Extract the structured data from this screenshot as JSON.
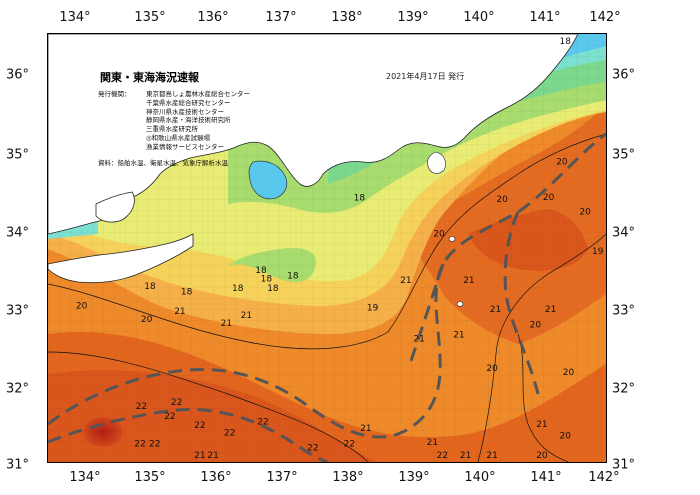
{
  "map": {
    "title": "関東・東海海況速報",
    "issued": "2021年4月17日 発行",
    "issuer_label": "発行機関：",
    "issuers": [
      "東京都島しょ農林水産総合センター",
      "千葉県水産総合研究センター",
      "神奈川県水産技術センター",
      "静岡県水産・海洋技術研究所",
      "三重県水産研究所",
      "◎和歌山県水産試験場",
      "漁業情報サービスセンター"
    ],
    "source": "資料：船舶水温、衛星水温、気象庁解析水温",
    "lon_labels": [
      "134°",
      "135°",
      "136°",
      "137°",
      "138°",
      "139°",
      "140°",
      "141°",
      "142°"
    ],
    "lat_labels_left": [
      "36°",
      "35°",
      "34°",
      "33°",
      "32°",
      "31°"
    ],
    "lat_labels_right": [
      "36°",
      "35°",
      "34°",
      "33°",
      "32°",
      "31°"
    ],
    "lon_range": [
      133.6,
      142.0
    ],
    "lat_range": [
      31.0,
      36.5
    ],
    "isotherm_labels": [
      {
        "t": "18",
        "lon": 141.3,
        "lat": 36.44
      },
      {
        "t": "18",
        "lon": 138.2,
        "lat": 34.36
      },
      {
        "t": "20",
        "lon": 140.35,
        "lat": 34.34
      },
      {
        "t": "20",
        "lon": 141.25,
        "lat": 34.82
      },
      {
        "t": "20",
        "lon": 141.05,
        "lat": 34.37
      },
      {
        "t": "20",
        "lon": 141.6,
        "lat": 34.18
      },
      {
        "t": "20",
        "lon": 139.4,
        "lat": 33.9
      },
      {
        "t": "19",
        "lon": 141.88,
        "lat": 33.67
      },
      {
        "t": "18",
        "lon": 136.72,
        "lat": 33.43
      },
      {
        "t": "18",
        "lon": 136.8,
        "lat": 33.32
      },
      {
        "t": "18",
        "lon": 136.37,
        "lat": 33.2
      },
      {
        "t": "18",
        "lon": 137.2,
        "lat": 33.36
      },
      {
        "t": "18",
        "lon": 136.9,
        "lat": 33.2
      },
      {
        "t": "18",
        "lon": 135.05,
        "lat": 33.22
      },
      {
        "t": "18",
        "lon": 135.6,
        "lat": 33.15
      },
      {
        "t": "21",
        "lon": 138.9,
        "lat": 33.3
      },
      {
        "t": "21",
        "lon": 139.85,
        "lat": 33.3
      },
      {
        "t": "20",
        "lon": 134.02,
        "lat": 32.97
      },
      {
        "t": "19",
        "lon": 138.4,
        "lat": 32.95
      },
      {
        "t": "21",
        "lon": 140.25,
        "lat": 32.93
      },
      {
        "t": "20",
        "lon": 140.85,
        "lat": 32.73
      },
      {
        "t": "21",
        "lon": 141.08,
        "lat": 32.93
      },
      {
        "t": "21",
        "lon": 135.5,
        "lat": 32.9
      },
      {
        "t": "21",
        "lon": 136.2,
        "lat": 32.75
      },
      {
        "t": "21",
        "lon": 136.5,
        "lat": 32.85
      },
      {
        "t": "20",
        "lon": 135.0,
        "lat": 32.8
      },
      {
        "t": "21",
        "lon": 139.1,
        "lat": 32.55
      },
      {
        "t": "21",
        "lon": 139.7,
        "lat": 32.6
      },
      {
        "t": "20",
        "lon": 140.2,
        "lat": 32.17
      },
      {
        "t": "20",
        "lon": 141.35,
        "lat": 32.12
      },
      {
        "t": "22",
        "lon": 134.92,
        "lat": 31.68
      },
      {
        "t": "22",
        "lon": 135.45,
        "lat": 31.73
      },
      {
        "t": "22",
        "lon": 135.35,
        "lat": 31.55
      },
      {
        "t": "22",
        "lon": 136.75,
        "lat": 31.48
      },
      {
        "t": "22",
        "lon": 135.8,
        "lat": 31.44
      },
      {
        "t": "22",
        "lon": 136.25,
        "lat": 31.34
      },
      {
        "t": "21",
        "lon": 138.3,
        "lat": 31.4
      },
      {
        "t": "21",
        "lon": 139.3,
        "lat": 31.22
      },
      {
        "t": "21",
        "lon": 140.95,
        "lat": 31.45
      },
      {
        "t": "20",
        "lon": 141.3,
        "lat": 31.3
      },
      {
        "t": "22",
        "lon": 134.9,
        "lat": 31.2
      },
      {
        "t": "22",
        "lon": 135.12,
        "lat": 31.2
      },
      {
        "t": "22",
        "lon": 137.5,
        "lat": 31.15
      },
      {
        "t": "22",
        "lon": 138.05,
        "lat": 31.2
      },
      {
        "t": "22",
        "lon": 139.45,
        "lat": 31.05
      },
      {
        "t": "21",
        "lon": 135.8,
        "lat": 31.05
      },
      {
        "t": "21",
        "lon": 136.0,
        "lat": 31.05
      },
      {
        "t": "21",
        "lon": 139.8,
        "lat": 31.05
      },
      {
        "t": "21",
        "lon": 140.2,
        "lat": 31.05
      },
      {
        "t": "20",
        "lon": 140.95,
        "lat": 31.05
      }
    ]
  }
}
